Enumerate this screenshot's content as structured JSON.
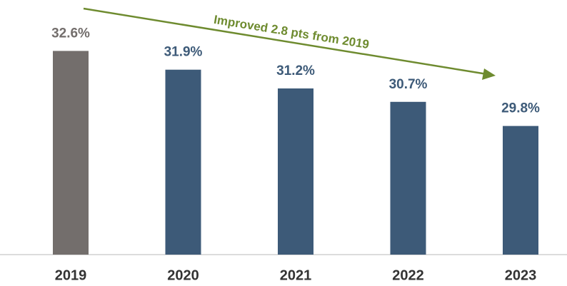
{
  "chart_data": {
    "type": "bar",
    "annotation": "Improved 2.8 pts from 2019",
    "categories": [
      "2019",
      "2020",
      "2021",
      "2022",
      "2023"
    ],
    "values": [
      32.6,
      31.9,
      31.2,
      30.7,
      29.8
    ],
    "value_labels": [
      "32.6%",
      "31.9%",
      "31.2%",
      "30.7%",
      "29.8%"
    ],
    "colors": [
      "#736e6c",
      "#3d5a78",
      "#3d5a78",
      "#3d5a78",
      "#3d5a78"
    ],
    "ylim": [
      25,
      34.5
    ],
    "grid": false
  }
}
